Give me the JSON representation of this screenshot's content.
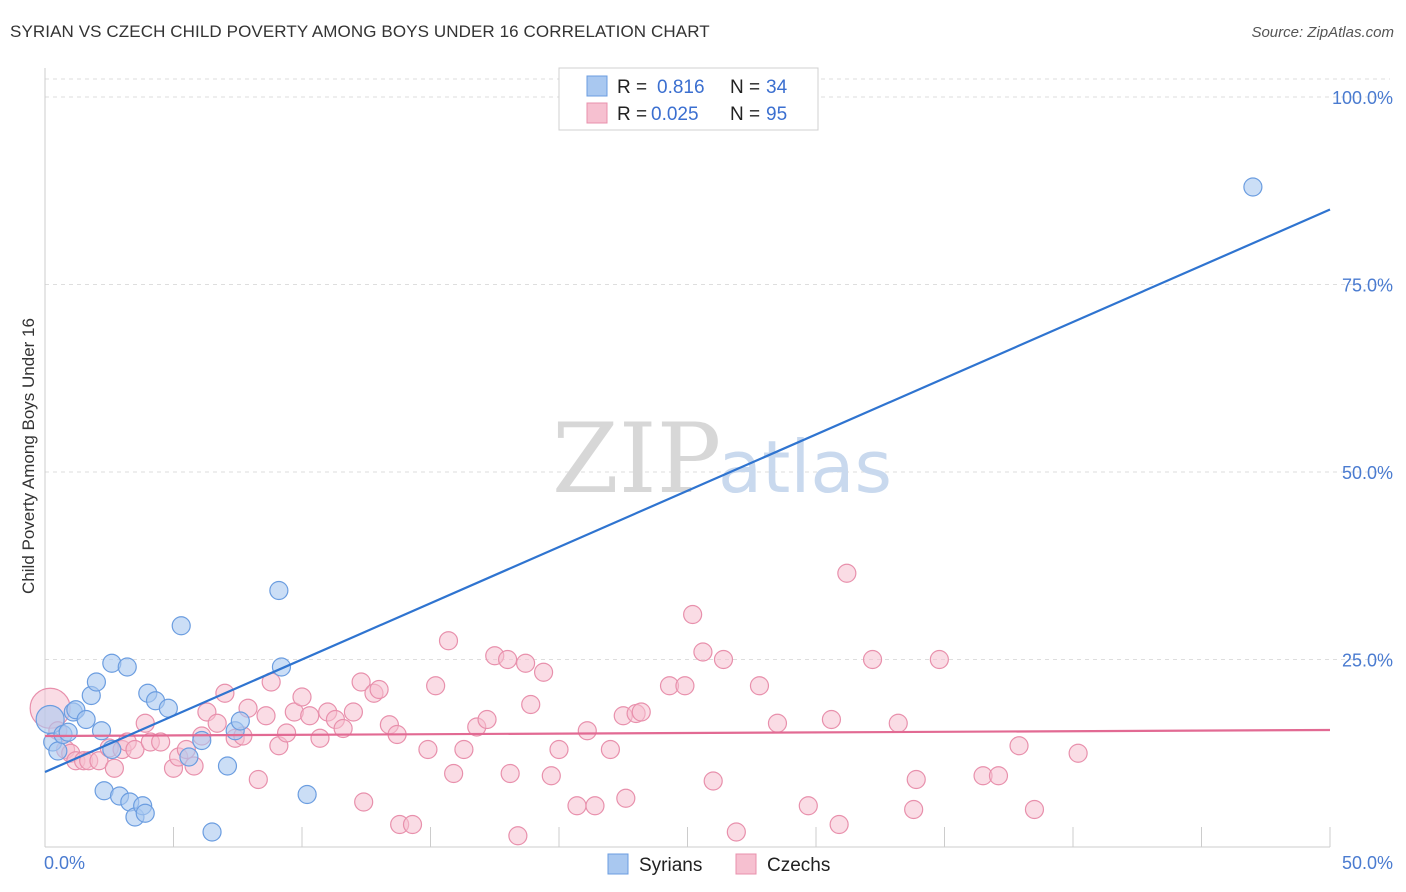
{
  "title": "SYRIAN VS CZECH CHILD POVERTY AMONG BOYS UNDER 16 CORRELATION CHART",
  "source": "Source: ZipAtlas.com",
  "watermark": {
    "zip": "ZIP",
    "atlas": "atlas"
  },
  "colors": {
    "syrians_fill": "#a9c8f0",
    "syrians_stroke": "#6b9de0",
    "syrians_line": "#2f74d0",
    "czechs_fill": "#f6c0d0",
    "czechs_stroke": "#e890ac",
    "czechs_line": "#e26a93"
  },
  "legend": {
    "rows": [
      {
        "r_label": "R =",
        "r_value": "0.816",
        "n_label": "N =",
        "n_value": "34"
      },
      {
        "r_label": "R =",
        "r_value": "0.025",
        "n_label": "N =",
        "n_value": "95"
      }
    ]
  },
  "bottom_legend": [
    "Syrians",
    "Czechs"
  ],
  "chart_data": {
    "type": "scatter",
    "title": "SYRIAN VS CZECH CHILD POVERTY AMONG BOYS UNDER 16 CORRELATION CHART",
    "xlabel": "",
    "ylabel": "Child Poverty Among Boys Under 16",
    "xlim": [
      0,
      50
    ],
    "ylim": [
      0,
      100
    ],
    "x_tick_labels": [
      "0.0%",
      "50.0%"
    ],
    "y_ticks": [
      25,
      50,
      75,
      100
    ],
    "y_tick_labels": [
      "25.0%",
      "50.0%",
      "75.0%",
      "100.0%"
    ],
    "grid": true,
    "legend_position": "top-center",
    "series": [
      {
        "name": "Syrians",
        "trend": {
          "x": [
            0,
            50
          ],
          "y": [
            10,
            85
          ]
        },
        "points": [
          [
            0.2,
            17.0
          ],
          [
            0.3,
            14.0
          ],
          [
            0.5,
            12.8
          ],
          [
            0.7,
            15.0
          ],
          [
            0.9,
            15.3
          ],
          [
            1.1,
            18.0
          ],
          [
            1.2,
            18.3
          ],
          [
            1.6,
            17.0
          ],
          [
            1.8,
            20.2
          ],
          [
            2.0,
            22.0
          ],
          [
            2.2,
            15.5
          ],
          [
            2.3,
            7.5
          ],
          [
            2.6,
            13.0
          ],
          [
            2.6,
            24.5
          ],
          [
            2.9,
            6.8
          ],
          [
            3.2,
            24.0
          ],
          [
            3.3,
            6.0
          ],
          [
            3.5,
            4.0
          ],
          [
            3.8,
            5.5
          ],
          [
            3.9,
            4.5
          ],
          [
            4.0,
            20.5
          ],
          [
            4.3,
            19.5
          ],
          [
            4.8,
            18.5
          ],
          [
            5.3,
            29.5
          ],
          [
            5.6,
            12.0
          ],
          [
            6.1,
            14.2
          ],
          [
            6.5,
            2.0
          ],
          [
            7.1,
            10.8
          ],
          [
            7.4,
            15.5
          ],
          [
            7.6,
            16.8
          ],
          [
            9.1,
            34.2
          ],
          [
            9.2,
            24.0
          ],
          [
            10.2,
            7.0
          ],
          [
            47.0,
            88.0
          ]
        ]
      },
      {
        "name": "Czechs",
        "trend": {
          "x": [
            0,
            50
          ],
          "y": [
            14.8,
            15.6
          ]
        },
        "points": [
          [
            0.2,
            18.5
          ],
          [
            0.5,
            15.5
          ],
          [
            0.8,
            13.0
          ],
          [
            1.0,
            12.5
          ],
          [
            1.2,
            11.5
          ],
          [
            1.5,
            11.5
          ],
          [
            1.7,
            11.5
          ],
          [
            2.1,
            11.5
          ],
          [
            2.5,
            13.2
          ],
          [
            2.7,
            10.5
          ],
          [
            3.0,
            13.0
          ],
          [
            3.2,
            14.0
          ],
          [
            3.5,
            13.0
          ],
          [
            3.9,
            16.5
          ],
          [
            4.1,
            14.0
          ],
          [
            4.5,
            14.0
          ],
          [
            5.0,
            10.5
          ],
          [
            5.2,
            12.0
          ],
          [
            5.5,
            13.0
          ],
          [
            5.8,
            10.8
          ],
          [
            6.1,
            14.8
          ],
          [
            6.3,
            18.0
          ],
          [
            6.7,
            16.5
          ],
          [
            7.0,
            20.5
          ],
          [
            7.4,
            14.5
          ],
          [
            7.7,
            14.8
          ],
          [
            7.9,
            18.5
          ],
          [
            8.3,
            9.0
          ],
          [
            8.6,
            17.5
          ],
          [
            8.8,
            22.0
          ],
          [
            9.1,
            13.5
          ],
          [
            9.4,
            15.2
          ],
          [
            9.7,
            18.0
          ],
          [
            10.0,
            20.0
          ],
          [
            10.3,
            17.5
          ],
          [
            10.7,
            14.5
          ],
          [
            11.0,
            18.0
          ],
          [
            11.3,
            17.0
          ],
          [
            11.6,
            15.8
          ],
          [
            12.0,
            18.0
          ],
          [
            12.3,
            22.0
          ],
          [
            12.4,
            6.0
          ],
          [
            12.8,
            20.5
          ],
          [
            13.0,
            21.0
          ],
          [
            13.4,
            16.3
          ],
          [
            13.7,
            15.0
          ],
          [
            13.8,
            3.0
          ],
          [
            14.3,
            3.0
          ],
          [
            14.9,
            13.0
          ],
          [
            15.2,
            21.5
          ],
          [
            15.7,
            27.5
          ],
          [
            15.9,
            9.8
          ],
          [
            16.3,
            13.0
          ],
          [
            16.8,
            16.0
          ],
          [
            17.2,
            17.0
          ],
          [
            17.5,
            25.5
          ],
          [
            18.0,
            25.0
          ],
          [
            18.1,
            9.8
          ],
          [
            18.4,
            1.5
          ],
          [
            18.7,
            24.5
          ],
          [
            18.9,
            19.0
          ],
          [
            19.4,
            23.3
          ],
          [
            19.7,
            9.5
          ],
          [
            20.0,
            13.0
          ],
          [
            20.7,
            5.5
          ],
          [
            21.1,
            15.5
          ],
          [
            21.4,
            5.5
          ],
          [
            22.0,
            13.0
          ],
          [
            22.5,
            17.5
          ],
          [
            22.6,
            6.5
          ],
          [
            23.0,
            17.8
          ],
          [
            23.2,
            18.0
          ],
          [
            24.3,
            21.5
          ],
          [
            24.9,
            21.5
          ],
          [
            25.2,
            31.0
          ],
          [
            25.6,
            26.0
          ],
          [
            26.0,
            8.8
          ],
          [
            26.4,
            25.0
          ],
          [
            26.9,
            2.0
          ],
          [
            27.8,
            21.5
          ],
          [
            28.5,
            16.5
          ],
          [
            29.7,
            5.5
          ],
          [
            30.6,
            17.0
          ],
          [
            30.9,
            3.0
          ],
          [
            31.2,
            36.5
          ],
          [
            32.2,
            25.0
          ],
          [
            33.2,
            16.5
          ],
          [
            33.8,
            5.0
          ],
          [
            33.9,
            9.0
          ],
          [
            34.8,
            25.0
          ],
          [
            36.5,
            9.5
          ],
          [
            37.1,
            9.5
          ],
          [
            37.9,
            13.5
          ],
          [
            38.5,
            5.0
          ],
          [
            40.2,
            12.5
          ]
        ]
      }
    ]
  }
}
